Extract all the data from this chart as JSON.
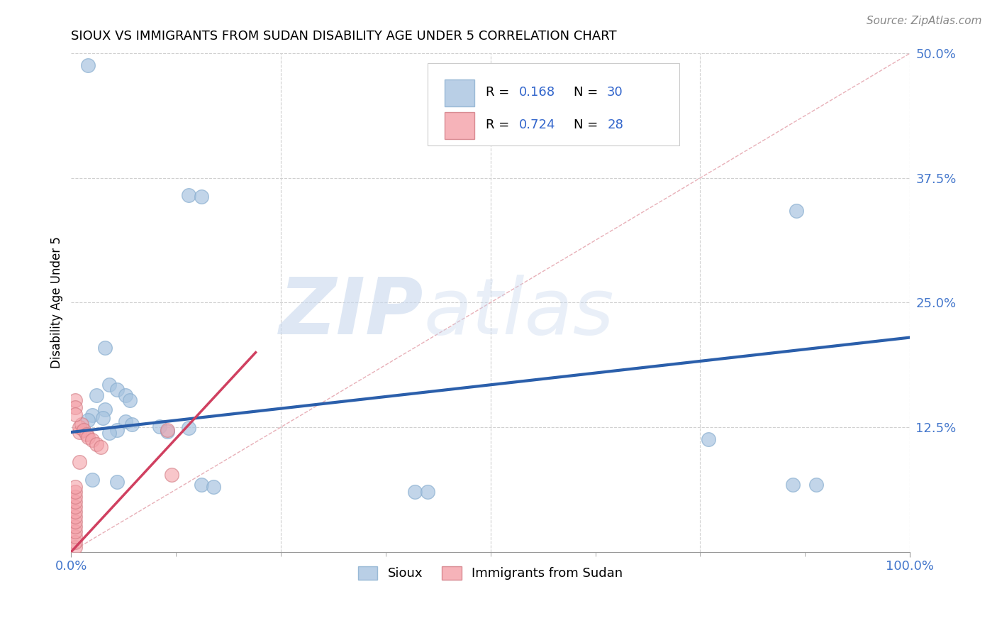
{
  "title": "SIOUX VS IMMIGRANTS FROM SUDAN DISABILITY AGE UNDER 5 CORRELATION CHART",
  "source": "Source: ZipAtlas.com",
  "ylabel": "Disability Age Under 5",
  "xlim": [
    0,
    1.0
  ],
  "ylim": [
    0,
    0.5
  ],
  "yticks": [
    0.0,
    0.125,
    0.25,
    0.375,
    0.5
  ],
  "ytick_labels": [
    "",
    "12.5%",
    "25.0%",
    "37.5%",
    "50.0%"
  ],
  "legend_blue_R": "0.168",
  "legend_blue_N": "30",
  "legend_pink_R": "0.724",
  "legend_pink_N": "28",
  "blue_color": "#A8C4E0",
  "pink_color": "#F4A0A8",
  "blue_line_color": "#2B5FAB",
  "pink_line_color": "#D04060",
  "diag_color": "#E8B0B8",
  "blue_scatter": [
    [
      0.02,
      0.488
    ],
    [
      0.14,
      0.358
    ],
    [
      0.155,
      0.356
    ],
    [
      0.04,
      0.205
    ],
    [
      0.045,
      0.168
    ],
    [
      0.055,
      0.163
    ],
    [
      0.03,
      0.157
    ],
    [
      0.065,
      0.157
    ],
    [
      0.07,
      0.152
    ],
    [
      0.04,
      0.143
    ],
    [
      0.025,
      0.137
    ],
    [
      0.038,
      0.134
    ],
    [
      0.02,
      0.132
    ],
    [
      0.065,
      0.131
    ],
    [
      0.072,
      0.128
    ],
    [
      0.105,
      0.126
    ],
    [
      0.14,
      0.124
    ],
    [
      0.055,
      0.122
    ],
    [
      0.115,
      0.121
    ],
    [
      0.045,
      0.119
    ],
    [
      0.025,
      0.072
    ],
    [
      0.055,
      0.07
    ],
    [
      0.155,
      0.067
    ],
    [
      0.17,
      0.065
    ],
    [
      0.41,
      0.06
    ],
    [
      0.425,
      0.06
    ],
    [
      0.76,
      0.113
    ],
    [
      0.865,
      0.342
    ],
    [
      0.86,
      0.067
    ],
    [
      0.888,
      0.067
    ]
  ],
  "pink_scatter": [
    [
      0.005,
      0.005
    ],
    [
      0.005,
      0.01
    ],
    [
      0.005,
      0.015
    ],
    [
      0.005,
      0.02
    ],
    [
      0.005,
      0.025
    ],
    [
      0.005,
      0.03
    ],
    [
      0.005,
      0.035
    ],
    [
      0.005,
      0.04
    ],
    [
      0.005,
      0.045
    ],
    [
      0.005,
      0.05
    ],
    [
      0.005,
      0.055
    ],
    [
      0.005,
      0.06
    ],
    [
      0.005,
      0.065
    ],
    [
      0.01,
      0.09
    ],
    [
      0.01,
      0.12
    ],
    [
      0.01,
      0.125
    ],
    [
      0.012,
      0.128
    ],
    [
      0.015,
      0.122
    ],
    [
      0.018,
      0.118
    ],
    [
      0.02,
      0.115
    ],
    [
      0.025,
      0.112
    ],
    [
      0.03,
      0.108
    ],
    [
      0.035,
      0.105
    ],
    [
      0.115,
      0.122
    ],
    [
      0.12,
      0.077
    ],
    [
      0.005,
      0.152
    ],
    [
      0.005,
      0.145
    ],
    [
      0.005,
      0.138
    ]
  ],
  "blue_line_x": [
    0.0,
    1.0
  ],
  "blue_line_y": [
    0.12,
    0.215
  ],
  "pink_line_x": [
    0.0,
    0.22
  ],
  "pink_line_y": [
    0.0,
    0.2
  ],
  "diag_line_x": [
    0.0,
    1.0
  ],
  "diag_line_y": [
    0.0,
    0.5
  ],
  "watermark_zip": "ZIP",
  "watermark_atlas": "atlas",
  "background_color": "#FFFFFF",
  "grid_color": "#D0D0D0"
}
